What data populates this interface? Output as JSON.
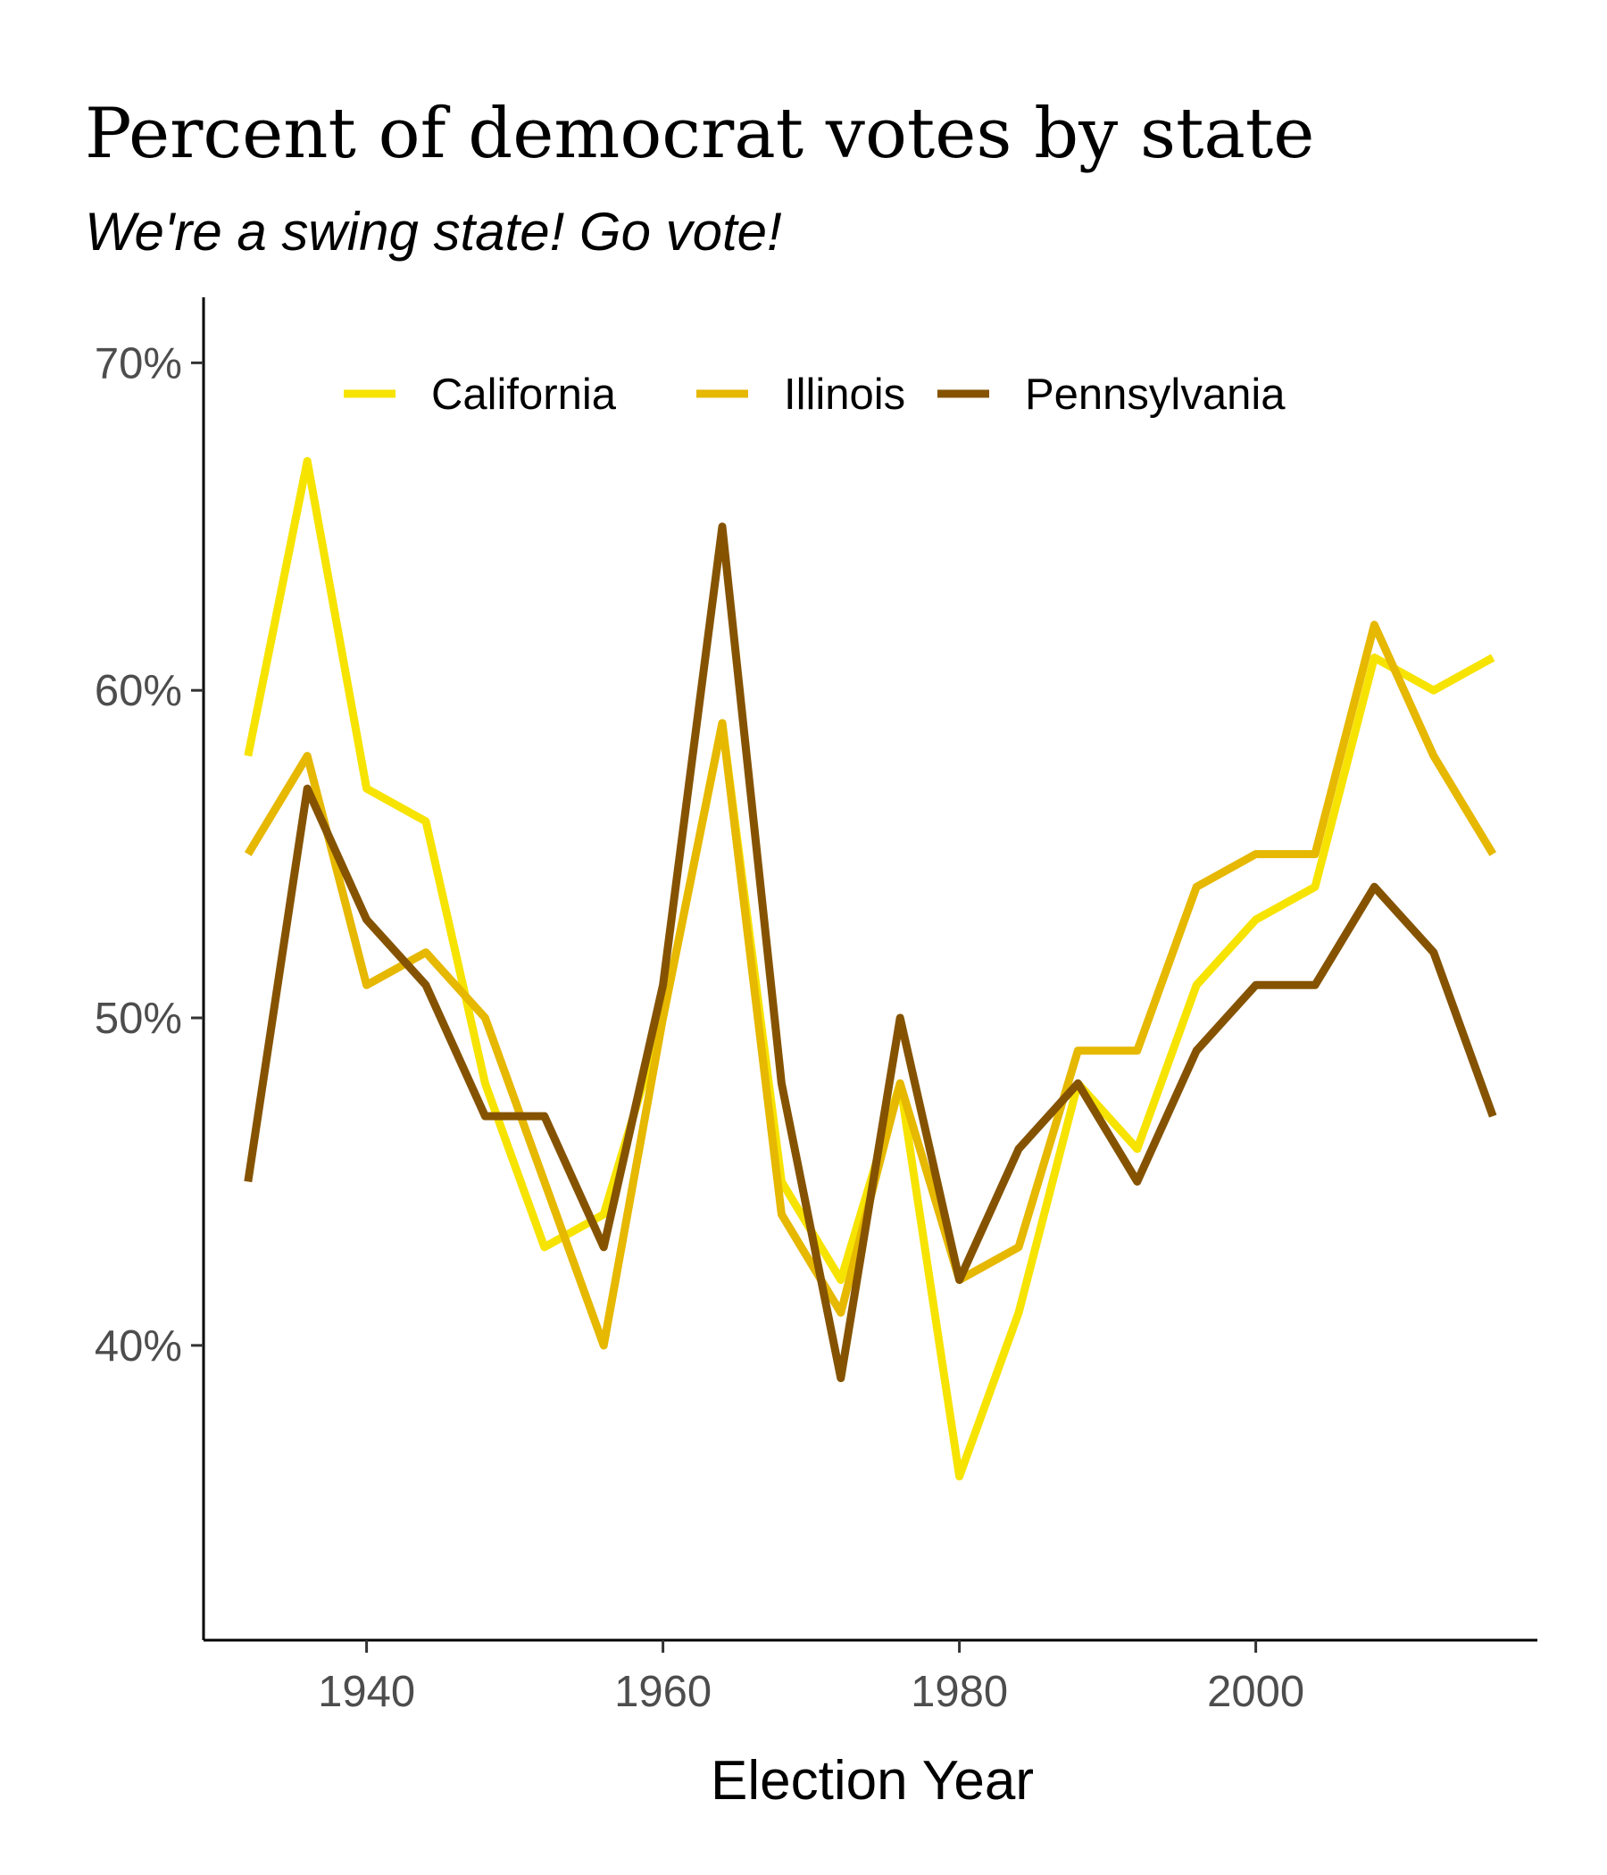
{
  "chart_data": {
    "type": "line",
    "title": "Percent of democrat votes by state",
    "subtitle": "We're a swing state! Go vote!",
    "xlabel": "Election Year",
    "ylabel": "",
    "x": [
      1932,
      1936,
      1940,
      1944,
      1948,
      1952,
      1956,
      1960,
      1964,
      1968,
      1972,
      1976,
      1980,
      1984,
      1988,
      1992,
      1996,
      2000,
      2004,
      2008,
      2012,
      2016
    ],
    "series": [
      {
        "name": "California",
        "color": "#f7e300",
        "values": [
          58,
          67,
          57,
          56,
          48,
          43,
          44,
          50,
          59,
          45,
          42,
          48,
          36,
          41,
          48,
          46,
          51,
          53,
          54,
          61,
          60,
          61
        ]
      },
      {
        "name": "Illinois",
        "color": "#e6b800",
        "values": [
          55,
          58,
          51,
          52,
          50,
          45,
          40,
          50,
          59,
          44,
          41,
          48,
          42,
          43,
          49,
          49,
          54,
          55,
          55,
          62,
          58,
          55
        ]
      },
      {
        "name": "Pennsylvania",
        "color": "#855300",
        "values": [
          45,
          57,
          53,
          51,
          47,
          47,
          43,
          51,
          65,
          48,
          39,
          50,
          42,
          46,
          48,
          45,
          49,
          51,
          51,
          54,
          52,
          47
        ]
      }
    ],
    "xlim": [
      1929,
      2019
    ],
    "ylim": [
      31,
      72
    ],
    "x_ticks": [
      1940,
      1960,
      1980,
      2000
    ],
    "x_tick_labels": [
      "1940",
      "1960",
      "1980",
      "2000"
    ],
    "y_ticks": [
      40,
      50,
      60,
      70
    ],
    "y_tick_labels": [
      "40%",
      "50%",
      "60%",
      "70%"
    ],
    "grid": false,
    "legend_position": "top"
  }
}
